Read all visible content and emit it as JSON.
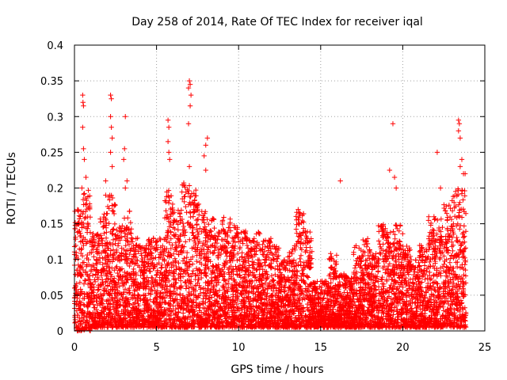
{
  "chart_data": {
    "type": "scatter",
    "title": "Day 258 of 2014, Rate Of TEC Index for receiver iqal",
    "xlabel": "GPS time / hours",
    "ylabel": "ROTI / TECUs",
    "xlim": [
      0,
      25
    ],
    "ylim": [
      0,
      0.4
    ],
    "x_ticks": [
      0,
      5,
      10,
      15,
      20,
      25
    ],
    "x_tick_labels": [
      "0",
      "5",
      "10",
      "15",
      "20",
      "25"
    ],
    "y_ticks": [
      0,
      0.05,
      0.1,
      0.15,
      0.2,
      0.25,
      0.3,
      0.35,
      0.4
    ],
    "y_tick_labels": [
      "0",
      "0.05",
      "0.1",
      "0.15",
      "0.2",
      "0.25",
      "0.3",
      "0.35",
      "0.4"
    ],
    "grid": true,
    "marker": "+",
    "marker_color": "#ff0000",
    "series": [
      {
        "name": "ROTI",
        "points": [
          [
            0.5,
            0.33
          ],
          [
            0.52,
            0.32
          ],
          [
            0.55,
            0.315
          ],
          [
            0.5,
            0.285
          ],
          [
            0.55,
            0.255
          ],
          [
            0.6,
            0.24
          ],
          [
            0.7,
            0.215
          ],
          [
            0.45,
            0.2
          ],
          [
            2.2,
            0.33
          ],
          [
            2.25,
            0.325
          ],
          [
            2.2,
            0.3
          ],
          [
            2.25,
            0.285
          ],
          [
            2.3,
            0.27
          ],
          [
            2.2,
            0.25
          ],
          [
            2.3,
            0.23
          ],
          [
            1.9,
            0.21
          ],
          [
            1.9,
            0.19
          ],
          [
            3.1,
            0.3
          ],
          [
            3.05,
            0.255
          ],
          [
            3.0,
            0.24
          ],
          [
            3.2,
            0.21
          ],
          [
            3.1,
            0.2
          ],
          [
            5.7,
            0.295
          ],
          [
            5.75,
            0.285
          ],
          [
            5.7,
            0.265
          ],
          [
            5.75,
            0.25
          ],
          [
            5.8,
            0.24
          ],
          [
            7.0,
            0.35
          ],
          [
            7.05,
            0.345
          ],
          [
            6.95,
            0.34
          ],
          [
            7.1,
            0.33
          ],
          [
            7.05,
            0.315
          ],
          [
            6.95,
            0.29
          ],
          [
            7.0,
            0.23
          ],
          [
            8.1,
            0.27
          ],
          [
            8.0,
            0.26
          ],
          [
            7.9,
            0.245
          ],
          [
            8.0,
            0.225
          ],
          [
            16.2,
            0.21
          ],
          [
            19.4,
            0.29
          ],
          [
            19.2,
            0.225
          ],
          [
            19.5,
            0.215
          ],
          [
            19.6,
            0.2
          ],
          [
            22.1,
            0.25
          ],
          [
            23.4,
            0.295
          ],
          [
            23.45,
            0.29
          ],
          [
            23.4,
            0.28
          ],
          [
            23.5,
            0.27
          ],
          [
            23.6,
            0.24
          ],
          [
            23.5,
            0.23
          ],
          [
            23.8,
            0.22
          ],
          [
            23.7,
            0.22
          ],
          [
            22.3,
            0.2
          ]
        ],
        "envelope": {
          "description": "dense band of values per half-hour bin: [hour, lower, upper]",
          "bins": [
            [
              0.25,
              0.0,
              0.17
            ],
            [
              0.75,
              0.0,
              0.2
            ],
            [
              1.25,
              0.005,
              0.14
            ],
            [
              1.75,
              0.005,
              0.17
            ],
            [
              2.25,
              0.005,
              0.19
            ],
            [
              2.75,
              0.005,
              0.15
            ],
            [
              3.25,
              0.005,
              0.17
            ],
            [
              3.75,
              0.005,
              0.13
            ],
            [
              4.25,
              0.005,
              0.12
            ],
            [
              4.75,
              0.005,
              0.13
            ],
            [
              5.25,
              0.005,
              0.13
            ],
            [
              5.75,
              0.005,
              0.2
            ],
            [
              6.25,
              0.005,
              0.17
            ],
            [
              6.75,
              0.005,
              0.21
            ],
            [
              7.25,
              0.005,
              0.2
            ],
            [
              7.75,
              0.005,
              0.18
            ],
            [
              8.25,
              0.005,
              0.16
            ],
            [
              8.75,
              0.005,
              0.15
            ],
            [
              9.25,
              0.005,
              0.16
            ],
            [
              9.75,
              0.005,
              0.15
            ],
            [
              10.25,
              0.005,
              0.14
            ],
            [
              10.75,
              0.005,
              0.13
            ],
            [
              11.25,
              0.005,
              0.14
            ],
            [
              11.75,
              0.005,
              0.13
            ],
            [
              12.25,
              0.005,
              0.12
            ],
            [
              12.75,
              0.005,
              0.1
            ],
            [
              13.25,
              0.005,
              0.12
            ],
            [
              13.75,
              0.005,
              0.17
            ],
            [
              14.25,
              0.005,
              0.14
            ],
            [
              14.75,
              0.005,
              0.07
            ],
            [
              15.25,
              0.005,
              0.07
            ],
            [
              15.75,
              0.005,
              0.11
            ],
            [
              16.25,
              0.005,
              0.08
            ],
            [
              16.75,
              0.005,
              0.08
            ],
            [
              17.25,
              0.005,
              0.12
            ],
            [
              17.75,
              0.005,
              0.13
            ],
            [
              18.25,
              0.005,
              0.11
            ],
            [
              18.75,
              0.005,
              0.15
            ],
            [
              19.25,
              0.005,
              0.14
            ],
            [
              19.75,
              0.005,
              0.15
            ],
            [
              20.25,
              0.005,
              0.12
            ],
            [
              20.75,
              0.005,
              0.1
            ],
            [
              21.25,
              0.005,
              0.12
            ],
            [
              21.75,
              0.005,
              0.16
            ],
            [
              22.25,
              0.005,
              0.16
            ],
            [
              22.75,
              0.005,
              0.18
            ],
            [
              23.25,
              0.005,
              0.2
            ],
            [
              23.75,
              0.005,
              0.2
            ]
          ]
        }
      }
    ]
  }
}
